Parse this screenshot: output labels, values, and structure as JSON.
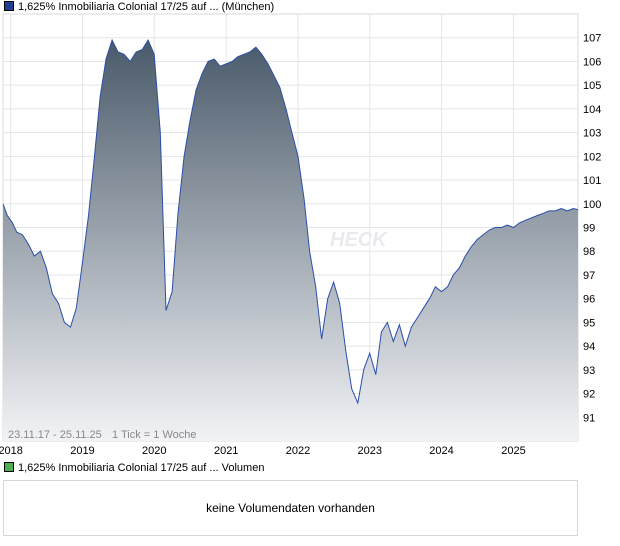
{
  "legend": {
    "price_label": "1,625% Inmobiliaria Colonial 17/25 auf ... (München)",
    "price_color": "#1f3f8f",
    "volume_label": "1,625% Inmobiliaria Colonial 17/25 auf ... Volumen",
    "volume_color": "#4caf50"
  },
  "chart_footer": {
    "range": "23.11.17 - 25.11.25",
    "tick_info": "1 Tick = 1 Woche"
  },
  "watermark": "HECK",
  "volume_panel": {
    "empty_text": "keine Volumendaten vorhanden"
  },
  "chart_data": {
    "type": "area",
    "ylim": [
      90,
      108
    ],
    "y_ticks": [
      91,
      92,
      93,
      94,
      95,
      96,
      97,
      98,
      99,
      100,
      101,
      102,
      103,
      104,
      105,
      106,
      107
    ],
    "x_ticks": [
      "2018",
      "2019",
      "2020",
      "2021",
      "2022",
      "2023",
      "2024",
      "2025"
    ],
    "x_range": [
      "2017-11-23",
      "2025-11-25"
    ],
    "grid": true,
    "line_color": "#2b4fa8",
    "fill_top": "#4a5a6a",
    "fill_bottom": "#f2f3f6",
    "series": [
      {
        "x": [
          "2017-11-23",
          "2017-12-15",
          "2018-01-10",
          "2018-02-01",
          "2018-03-01",
          "2018-04-01",
          "2018-05-01",
          "2018-06-01",
          "2018-07-01",
          "2018-08-01",
          "2018-09-01",
          "2018-10-01",
          "2018-11-01",
          "2018-12-01",
          "2019-01-01",
          "2019-02-01",
          "2019-03-01",
          "2019-04-01",
          "2019-05-01",
          "2019-06-01",
          "2019-07-01",
          "2019-08-01",
          "2019-09-01",
          "2019-10-01",
          "2019-11-01",
          "2019-12-01",
          "2020-01-01",
          "2020-02-01",
          "2020-03-01",
          "2020-04-01",
          "2020-05-01",
          "2020-06-01",
          "2020-07-01",
          "2020-08-01",
          "2020-09-01",
          "2020-10-01",
          "2020-11-01",
          "2020-12-01",
          "2021-01-01",
          "2021-02-01",
          "2021-03-01",
          "2021-04-01",
          "2021-05-01",
          "2021-06-01",
          "2021-07-01",
          "2021-08-01",
          "2021-09-01",
          "2021-10-01",
          "2021-11-01",
          "2021-12-01",
          "2022-01-01",
          "2022-02-01",
          "2022-03-01",
          "2022-04-01",
          "2022-05-01",
          "2022-06-01",
          "2022-07-01",
          "2022-08-01",
          "2022-09-01",
          "2022-10-01",
          "2022-11-01",
          "2022-12-01",
          "2023-01-01",
          "2023-02-01",
          "2023-03-01",
          "2023-04-01",
          "2023-05-01",
          "2023-06-01",
          "2023-07-01",
          "2023-08-01",
          "2023-09-01",
          "2023-10-01",
          "2023-11-01",
          "2023-12-01",
          "2024-01-01",
          "2024-02-01",
          "2024-03-01",
          "2024-04-01",
          "2024-05-01",
          "2024-06-01",
          "2024-07-01",
          "2024-08-01",
          "2024-09-01",
          "2024-10-01",
          "2024-11-01",
          "2024-12-01",
          "2025-01-01",
          "2025-02-01",
          "2025-03-01",
          "2025-04-01",
          "2025-05-01",
          "2025-06-01",
          "2025-07-01",
          "2025-08-01",
          "2025-09-01",
          "2025-10-01",
          "2025-11-01",
          "2025-11-25"
        ],
        "y": [
          100.0,
          99.5,
          99.2,
          98.8,
          98.7,
          98.3,
          97.8,
          98.0,
          97.3,
          96.2,
          95.8,
          95.0,
          94.8,
          95.6,
          97.5,
          99.5,
          101.8,
          104.5,
          106.1,
          106.9,
          106.4,
          106.3,
          106.0,
          106.4,
          106.5,
          106.9,
          106.3,
          103.0,
          95.5,
          96.3,
          99.6,
          102.0,
          103.5,
          104.8,
          105.5,
          106.0,
          106.1,
          105.8,
          105.9,
          106.0,
          106.2,
          106.3,
          106.4,
          106.6,
          106.3,
          105.9,
          105.4,
          104.9,
          104.0,
          103.0,
          102.0,
          100.2,
          98.0,
          96.5,
          94.3,
          96.0,
          96.7,
          95.8,
          93.8,
          92.2,
          91.6,
          93.0,
          93.7,
          92.8,
          94.6,
          95.0,
          94.2,
          94.9,
          94.0,
          94.8,
          95.2,
          95.6,
          96.0,
          96.5,
          96.3,
          96.5,
          97.0,
          97.3,
          97.8,
          98.2,
          98.5,
          98.7,
          98.9,
          99.0,
          99.0,
          99.1,
          99.0,
          99.2,
          99.3,
          99.4,
          99.5,
          99.6,
          99.7,
          99.7,
          99.8,
          99.7,
          99.8,
          99.75
        ]
      }
    ]
  }
}
